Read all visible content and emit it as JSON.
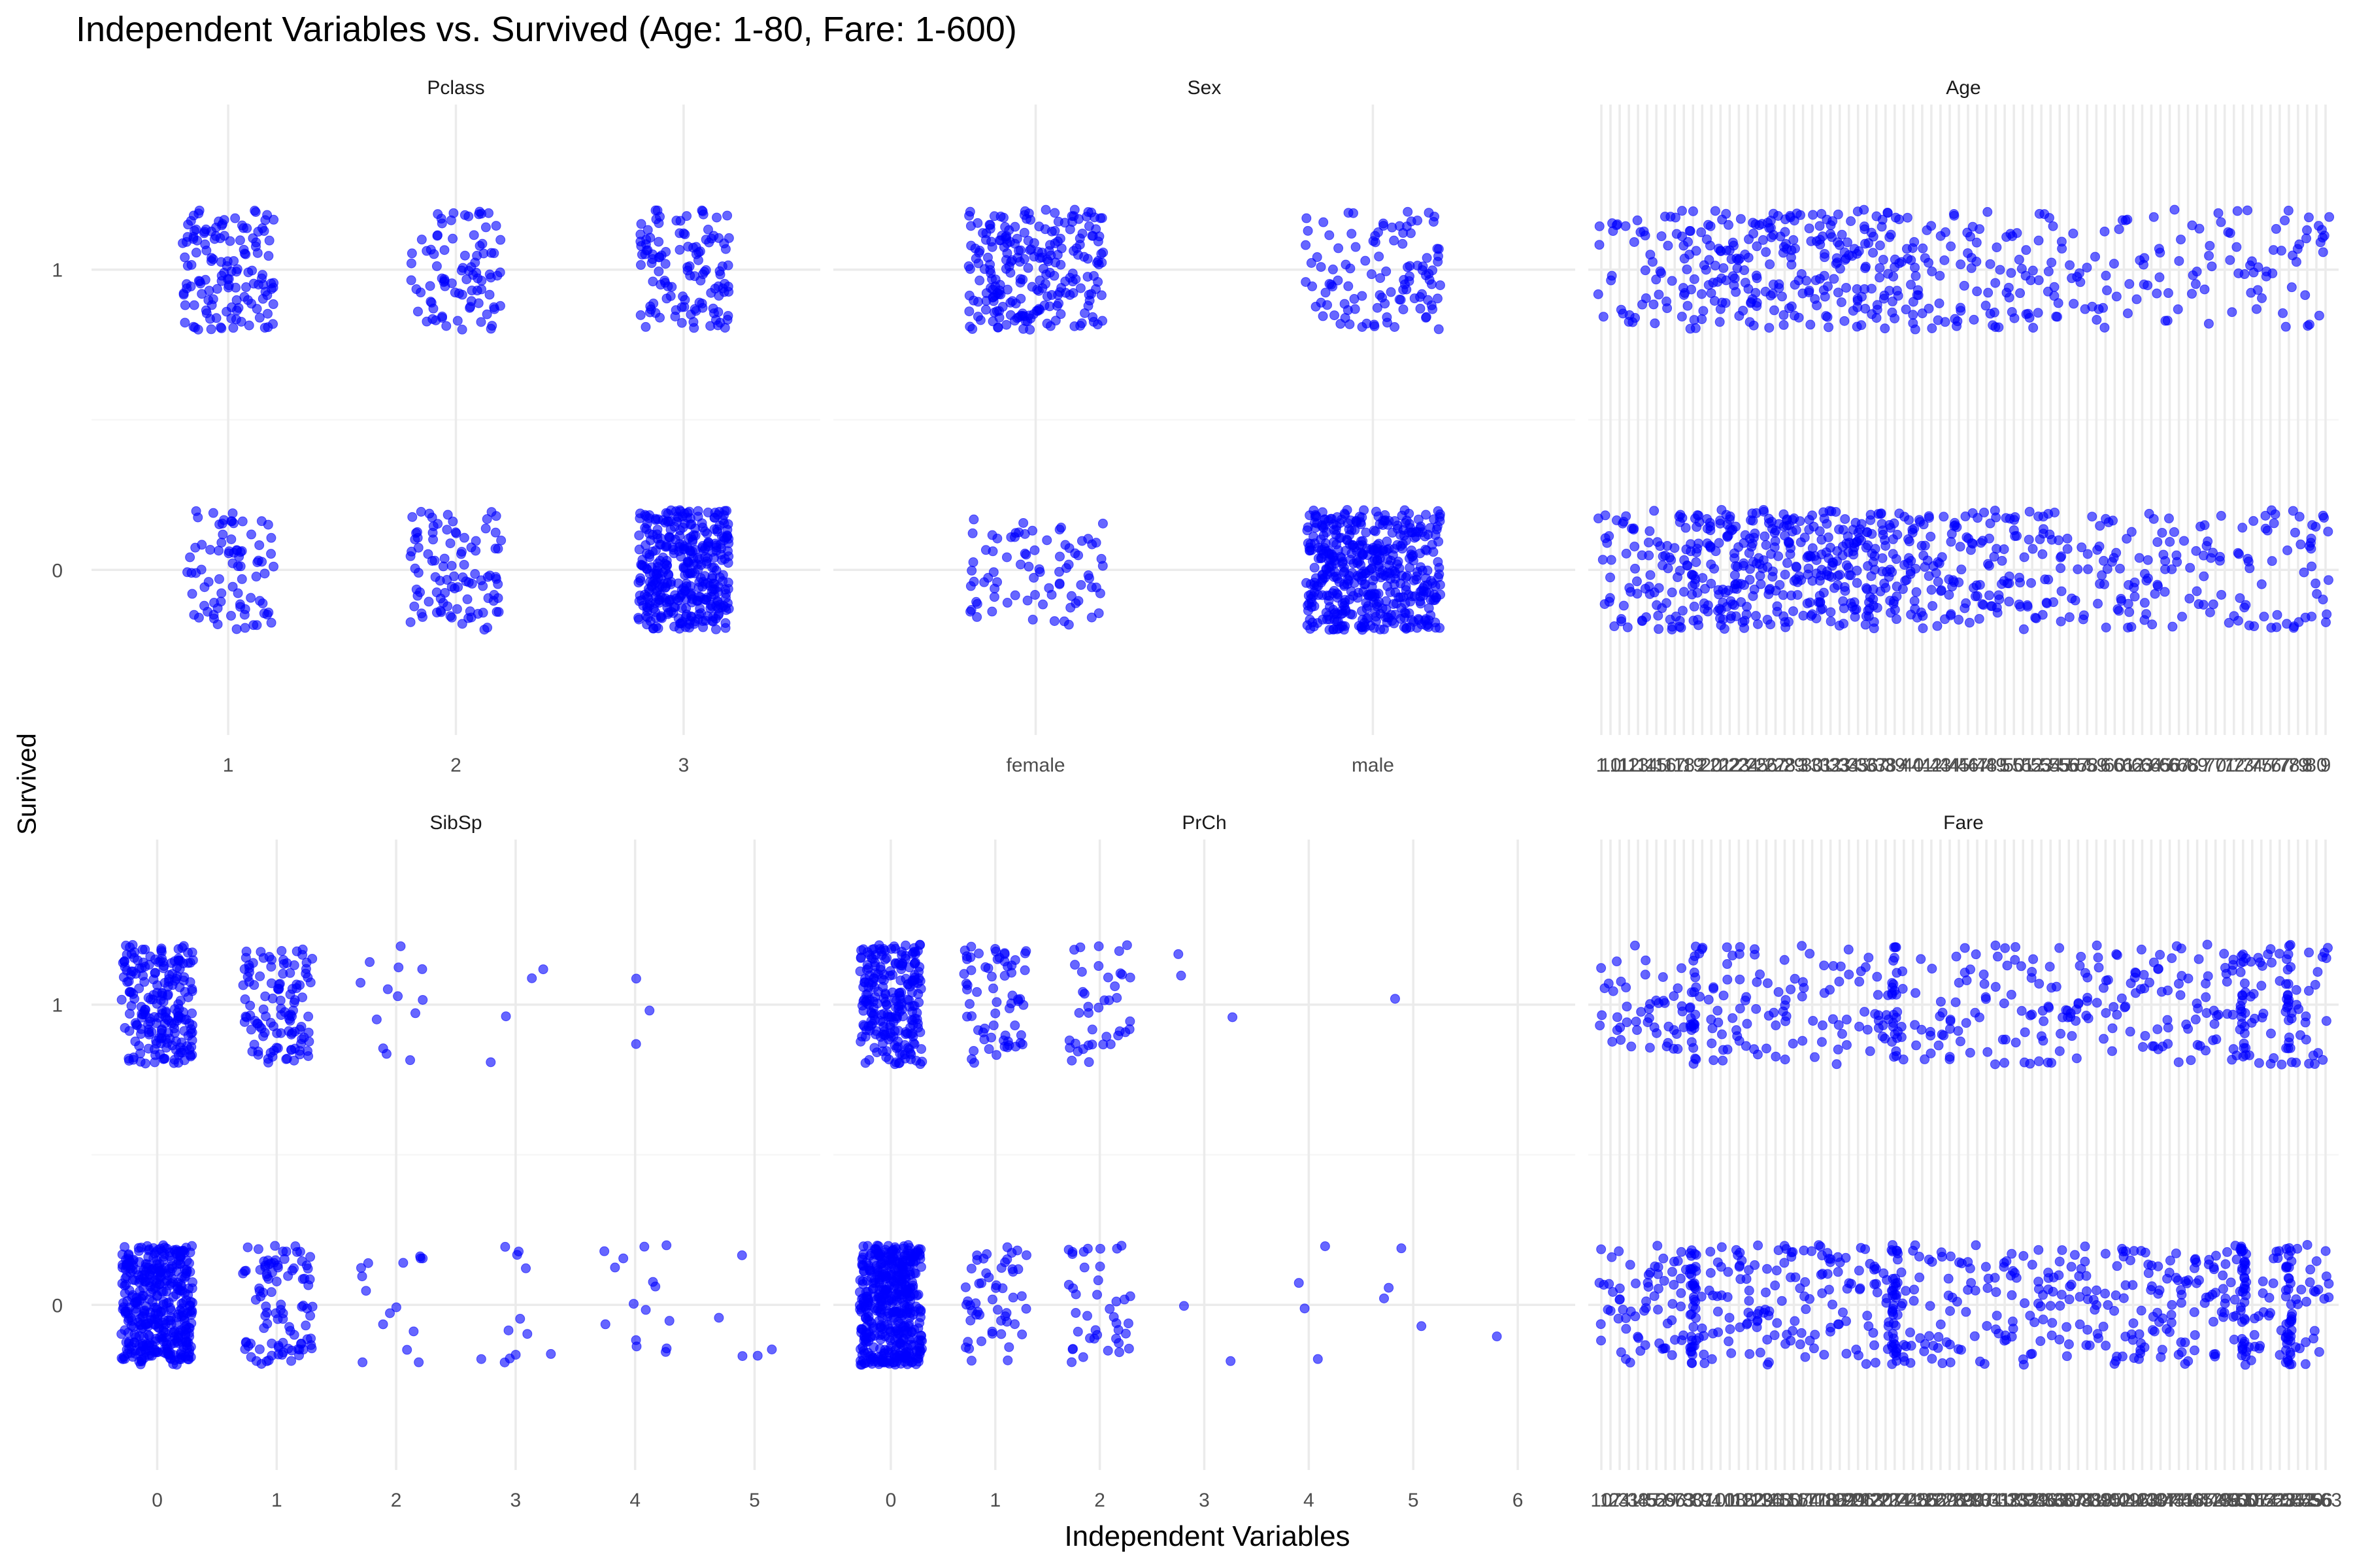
{
  "title": "Independent Variables vs. Survived (Age: 1-80, Fare: 1-600)",
  "xlabel": "Independent Variables",
  "ylabel": "Survived",
  "colors": {
    "points": "#0000ff",
    "grid": "#ebebeb",
    "background": "#ffffff"
  },
  "chart_data": [
    {
      "type": "scatter",
      "title": "Pclass",
      "categories": [
        "1",
        "2",
        "3"
      ],
      "y_ticks": [
        "0",
        "1"
      ],
      "ylim": [
        -0.55,
        1.55
      ],
      "jitter": 0.2,
      "counts": [
        {
          "died": 80,
          "survived": 136
        },
        {
          "died": 97,
          "survived": 87
        },
        {
          "died": 372,
          "survived": 119
        }
      ]
    },
    {
      "type": "scatter",
      "title": "Sex",
      "categories": [
        "female",
        "male"
      ],
      "y_ticks": [
        "0",
        "1"
      ],
      "ylim": [
        -0.55,
        1.55
      ],
      "jitter": 0.2,
      "counts": [
        {
          "died": 81,
          "survived": 233
        },
        {
          "died": 468,
          "survived": 109
        }
      ]
    },
    {
      "type": "scatter",
      "title": "Age",
      "categories": [
        "1",
        "10",
        "11",
        "12",
        "13",
        "14",
        "15",
        "16",
        "17",
        "18",
        "19",
        "2",
        "20",
        "21",
        "22",
        "23",
        "24",
        "25",
        "26",
        "27",
        "28",
        "29",
        "3",
        "30",
        "31",
        "32",
        "33",
        "34",
        "35",
        "36",
        "37",
        "38",
        "39",
        "4",
        "40",
        "41",
        "42",
        "43",
        "44",
        "45",
        "46",
        "47",
        "48",
        "49",
        "5",
        "50",
        "51",
        "52",
        "53",
        "54",
        "55",
        "56",
        "57",
        "58",
        "59",
        "6",
        "60",
        "61",
        "62",
        "63",
        "64",
        "65",
        "66",
        "67",
        "68",
        "69",
        "7",
        "70",
        "71",
        "72",
        "73",
        "74",
        "75",
        "76",
        "77",
        "78",
        "79",
        "8",
        "80",
        "9"
      ],
      "y_ticks": [
        "0",
        "1"
      ],
      "ylim": [
        -0.55,
        1.55
      ],
      "jitter": 0.2,
      "counts": "approx. 24 deaths and 15 survivals per age level, concentrated at ages 18-40"
    },
    {
      "type": "scatter",
      "title": "SibSp",
      "categories": [
        "0",
        "1",
        "2",
        "3",
        "4",
        "5"
      ],
      "y_ticks": [
        "0",
        "1"
      ],
      "ylim": [
        -0.55,
        1.55
      ],
      "jitter": 0.3,
      "counts": [
        {
          "died": 398,
          "survived": 210
        },
        {
          "died": 97,
          "survived": 112
        },
        {
          "died": 15,
          "survived": 13
        },
        {
          "died": 12,
          "survived": 4
        },
        {
          "died": 15,
          "survived": 3
        },
        {
          "died": 5,
          "survived": 0
        }
      ]
    },
    {
      "type": "scatter",
      "title": "PrCh",
      "categories": [
        "0",
        "1",
        "2",
        "3",
        "4",
        "5",
        "6"
      ],
      "y_ticks": [
        "0",
        "1"
      ],
      "ylim": [
        -0.55,
        1.55
      ],
      "jitter": 0.3,
      "counts": [
        {
          "died": 445,
          "survived": 233
        },
        {
          "died": 53,
          "survived": 65
        },
        {
          "died": 40,
          "survived": 40
        },
        {
          "died": 2,
          "survived": 3
        },
        {
          "died": 4,
          "survived": 0
        },
        {
          "died": 4,
          "survived": 1
        },
        {
          "died": 1,
          "survived": 0
        }
      ]
    },
    {
      "type": "scatter",
      "title": "Fare",
      "categories_count": 80,
      "tick_labels": "overplotted; rendered as overlapping fare values",
      "y_ticks": [
        "0",
        "1"
      ],
      "ylim": [
        -0.55,
        1.55
      ],
      "jitter": 0.2,
      "counts": "clustered at low fares; heaviest columns near the common fares (about 7.75-8.05, 13, 26)"
    }
  ]
}
